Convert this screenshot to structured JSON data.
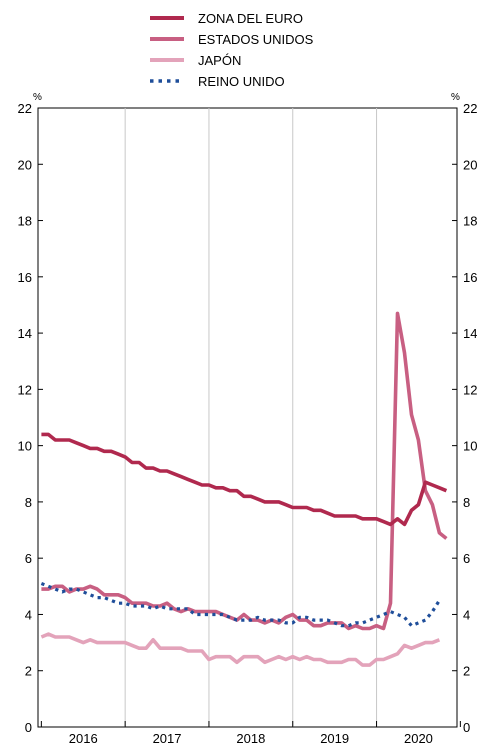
{
  "chart_data": {
    "type": "line",
    "title": "",
    "xlabel": "",
    "ylabel": "%",
    "ylabel_right": "%",
    "ylim": [
      0,
      22
    ],
    "yticks": [
      0,
      2,
      4,
      6,
      8,
      10,
      12,
      14,
      16,
      18,
      20,
      22
    ],
    "ytick_labels": [
      "0",
      "2",
      "4",
      "6",
      "8",
      "10",
      "12",
      "14",
      "16",
      "18",
      "20",
      "22"
    ],
    "xlim": [
      2015.96,
      2020.96
    ],
    "year_labels": [
      "2016",
      "2017",
      "2018",
      "2019",
      "2020"
    ],
    "grid": "vertical",
    "legend_position": "top",
    "series": [
      {
        "name": "ZONA DEL EURO",
        "color": "#b0294e",
        "style": "solid",
        "start": 2016.0,
        "step": 0.08333,
        "values": [
          10.4,
          10.4,
          10.2,
          10.2,
          10.2,
          10.1,
          10.0,
          9.9,
          9.9,
          9.8,
          9.8,
          9.7,
          9.6,
          9.4,
          9.4,
          9.2,
          9.2,
          9.1,
          9.1,
          9.0,
          8.9,
          8.8,
          8.7,
          8.6,
          8.6,
          8.5,
          8.5,
          8.4,
          8.4,
          8.2,
          8.2,
          8.1,
          8.0,
          8.0,
          8.0,
          7.9,
          7.8,
          7.8,
          7.8,
          7.7,
          7.7,
          7.6,
          7.5,
          7.5,
          7.5,
          7.5,
          7.4,
          7.4,
          7.4,
          7.3,
          7.2,
          7.4,
          7.2,
          7.7,
          7.9,
          8.7,
          8.6,
          8.5,
          8.4
        ]
      },
      {
        "name": "ESTADOS UNIDOS",
        "color": "#c85f82",
        "style": "solid",
        "start": 2016.0,
        "step": 0.08333,
        "values": [
          4.9,
          4.9,
          5.0,
          5.0,
          4.8,
          4.9,
          4.9,
          5.0,
          4.9,
          4.7,
          4.7,
          4.7,
          4.6,
          4.4,
          4.4,
          4.4,
          4.3,
          4.3,
          4.4,
          4.2,
          4.1,
          4.2,
          4.1,
          4.1,
          4.1,
          4.1,
          4.0,
          3.9,
          3.8,
          4.0,
          3.8,
          3.8,
          3.7,
          3.8,
          3.7,
          3.9,
          4.0,
          3.8,
          3.8,
          3.6,
          3.6,
          3.7,
          3.7,
          3.7,
          3.5,
          3.6,
          3.5,
          3.5,
          3.6,
          3.5,
          4.4,
          14.7,
          13.3,
          11.1,
          10.2,
          8.4,
          7.9,
          6.9,
          6.7
        ]
      },
      {
        "name": "JAPÓN",
        "color": "#e3a3ba",
        "style": "solid",
        "start": 2016.0,
        "step": 0.08333,
        "values": [
          3.2,
          3.3,
          3.2,
          3.2,
          3.2,
          3.1,
          3.0,
          3.1,
          3.0,
          3.0,
          3.0,
          3.0,
          3.0,
          2.9,
          2.8,
          2.8,
          3.1,
          2.8,
          2.8,
          2.8,
          2.8,
          2.7,
          2.7,
          2.7,
          2.4,
          2.5,
          2.5,
          2.5,
          2.3,
          2.5,
          2.5,
          2.5,
          2.3,
          2.4,
          2.5,
          2.4,
          2.5,
          2.4,
          2.5,
          2.4,
          2.4,
          2.3,
          2.3,
          2.3,
          2.4,
          2.4,
          2.2,
          2.2,
          2.4,
          2.4,
          2.5,
          2.6,
          2.9,
          2.8,
          2.9,
          3.0,
          3.0,
          3.1
        ]
      },
      {
        "name": "REINO UNIDO",
        "color": "#1f4e9a",
        "style": "dotted",
        "start": 2016.0,
        "step": 0.08333,
        "values": [
          5.1,
          5.0,
          4.9,
          4.8,
          4.9,
          4.9,
          4.8,
          4.7,
          4.6,
          4.6,
          4.5,
          4.4,
          4.4,
          4.3,
          4.3,
          4.3,
          4.2,
          4.3,
          4.2,
          4.2,
          4.2,
          4.2,
          4.0,
          4.0,
          4.0,
          4.0,
          4.0,
          3.9,
          3.8,
          3.8,
          3.8,
          3.9,
          3.8,
          3.8,
          3.8,
          3.7,
          3.7,
          3.9,
          3.9,
          3.8,
          3.8,
          3.8,
          3.7,
          3.6,
          3.6,
          3.7,
          3.7,
          3.8,
          3.9,
          4.0,
          4.1,
          4.0,
          3.9,
          3.6,
          3.7,
          3.8,
          4.1,
          4.5
        ]
      }
    ]
  }
}
